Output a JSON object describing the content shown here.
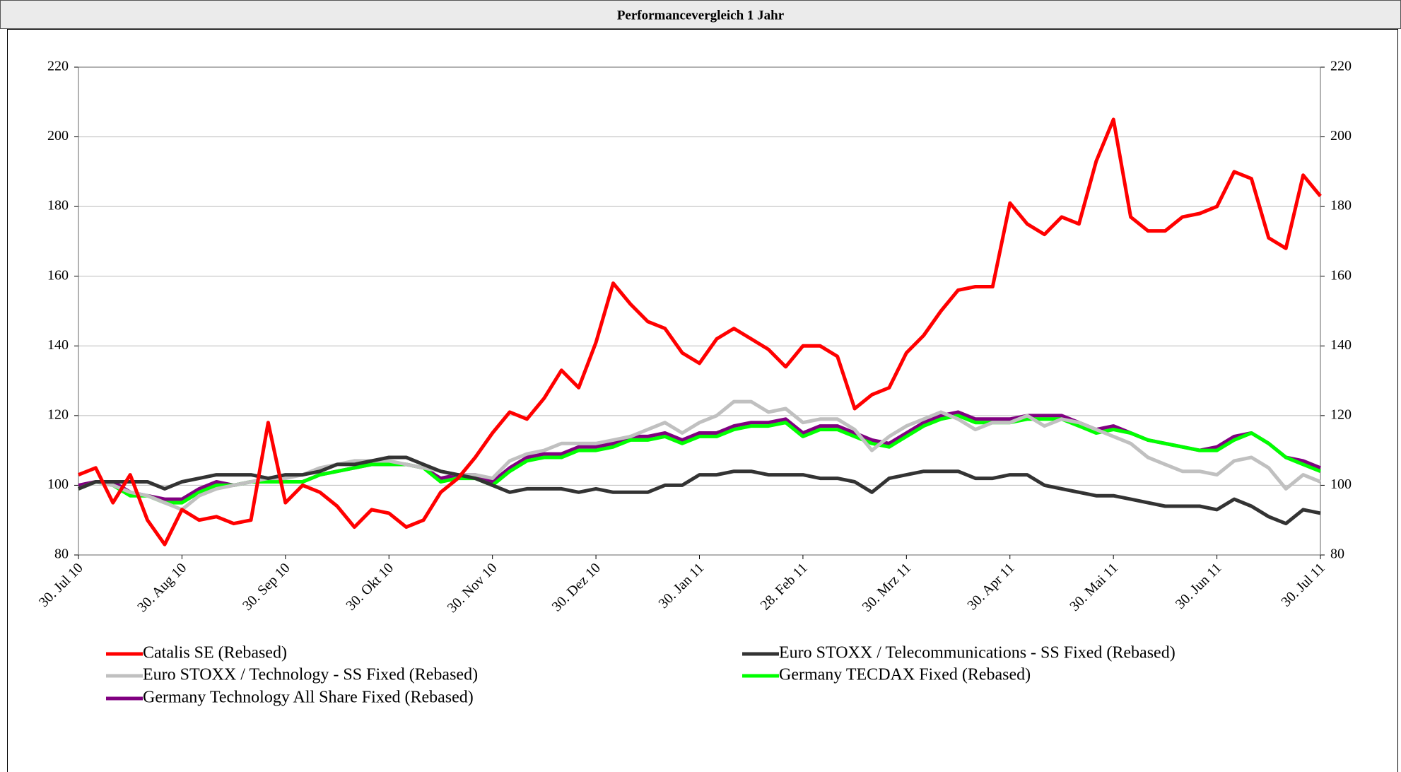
{
  "chart_data": {
    "type": "line",
    "title": "Performancevergleich 1 Jahr",
    "categories": [
      "30. Jul 10",
      null,
      null,
      null,
      null,
      null,
      "30. Aug 10",
      null,
      null,
      null,
      null,
      null,
      "30. Sep 10",
      null,
      null,
      null,
      null,
      null,
      "30. Okt 10",
      null,
      null,
      null,
      null,
      null,
      "30. Nov 10",
      null,
      null,
      null,
      null,
      null,
      "30. Dez 10",
      null,
      null,
      null,
      null,
      null,
      "30. Jan 11",
      null,
      null,
      null,
      null,
      null,
      "28. Feb 11",
      null,
      null,
      null,
      null,
      null,
      "30. Mrz 11",
      null,
      null,
      null,
      null,
      null,
      "30. Apr 11",
      null,
      null,
      null,
      null,
      null,
      "30. Mai 11",
      null,
      null,
      null,
      null,
      null,
      "30. Jun 11",
      null,
      null,
      null,
      null,
      null,
      "30. Jul 11"
    ],
    "series": [
      {
        "name": "Catalis SE (Rebased)",
        "color": "#ff0000",
        "values": [
          103,
          105,
          95,
          103,
          90,
          83,
          93,
          90,
          91,
          89,
          90,
          118,
          95,
          100,
          98,
          94,
          88,
          93,
          92,
          88,
          90,
          98,
          102,
          108,
          115,
          121,
          119,
          125,
          133,
          128,
          141,
          158,
          152,
          147,
          145,
          138,
          135,
          142,
          145,
          142,
          139,
          134,
          140,
          140,
          137,
          122,
          126,
          128,
          138,
          143,
          150,
          156,
          157,
          157,
          181,
          175,
          172,
          177,
          175,
          193,
          205,
          177,
          173,
          173,
          177,
          178,
          180,
          190,
          188,
          171,
          168,
          189,
          183
        ]
      },
      {
        "name": "Euro STOXX / Telecommunications - SS Fixed (Rebased)",
        "color": "#333333",
        "values": [
          99,
          101,
          101,
          101,
          101,
          99,
          101,
          102,
          103,
          103,
          103,
          102,
          103,
          103,
          104,
          106,
          106,
          107,
          108,
          108,
          106,
          104,
          103,
          102,
          100,
          98,
          99,
          99,
          99,
          98,
          99,
          98,
          98,
          98,
          100,
          100,
          103,
          103,
          104,
          104,
          103,
          103,
          103,
          102,
          102,
          101,
          98,
          102,
          103,
          104,
          104,
          104,
          102,
          102,
          103,
          103,
          100,
          99,
          98,
          97,
          97,
          96,
          95,
          94,
          94,
          94,
          93,
          96,
          94,
          91,
          89,
          93,
          92
        ]
      },
      {
        "name": "Euro STOXX / Technology - SS Fixed (Rebased)",
        "color": "#c0c0c0",
        "values": [
          99,
          101,
          100,
          98,
          97,
          95,
          93,
          97,
          99,
          100,
          101,
          102,
          102,
          103,
          105,
          106,
          107,
          107,
          107,
          106,
          105,
          104,
          103,
          103,
          102,
          107,
          109,
          110,
          112,
          112,
          112,
          113,
          114,
          116,
          118,
          115,
          118,
          120,
          124,
          124,
          121,
          122,
          118,
          119,
          119,
          116,
          110,
          114,
          117,
          119,
          121,
          119,
          116,
          118,
          118,
          120,
          117,
          119,
          118,
          116,
          114,
          112,
          108,
          106,
          104,
          104,
          103,
          107,
          108,
          105,
          99,
          103,
          101
        ]
      },
      {
        "name": "Germany TECDAX Fixed (Rebased)",
        "color": "#00ff00",
        "values": [
          99,
          101,
          100,
          97,
          97,
          95,
          95,
          98,
          100,
          100,
          101,
          101,
          101,
          101,
          103,
          104,
          105,
          106,
          106,
          106,
          105,
          101,
          102,
          102,
          100,
          104,
          107,
          108,
          108,
          110,
          110,
          111,
          113,
          113,
          114,
          112,
          114,
          114,
          116,
          117,
          117,
          118,
          114,
          116,
          116,
          114,
          112,
          111,
          114,
          117,
          119,
          120,
          118,
          118,
          118,
          119,
          119,
          119,
          117,
          115,
          116,
          115,
          113,
          112,
          111,
          110,
          110,
          113,
          115,
          112,
          108,
          106,
          104
        ]
      },
      {
        "name": "Germany Technology All Share Fixed (Rebased)",
        "color": "#800080",
        "values": [
          100,
          101,
          101,
          98,
          97,
          96,
          96,
          99,
          101,
          100,
          101,
          101,
          101,
          101,
          103,
          104,
          105,
          106,
          106,
          106,
          105,
          102,
          103,
          103,
          101,
          105,
          108,
          109,
          109,
          111,
          111,
          112,
          114,
          114,
          115,
          113,
          115,
          115,
          117,
          118,
          118,
          119,
          115,
          117,
          117,
          115,
          113,
          112,
          115,
          118,
          120,
          121,
          119,
          119,
          119,
          120,
          120,
          120,
          118,
          116,
          117,
          115,
          113,
          112,
          111,
          110,
          111,
          114,
          115,
          112,
          108,
          107,
          105
        ]
      }
    ],
    "ylim": [
      80,
      220
    ],
    "yticks": [
      80,
      100,
      120,
      140,
      160,
      180,
      200,
      220
    ],
    "y2lim": [
      80,
      220
    ],
    "y2ticks": [
      80,
      100,
      120,
      140,
      160,
      180,
      200,
      220
    ],
    "grid": true
  }
}
